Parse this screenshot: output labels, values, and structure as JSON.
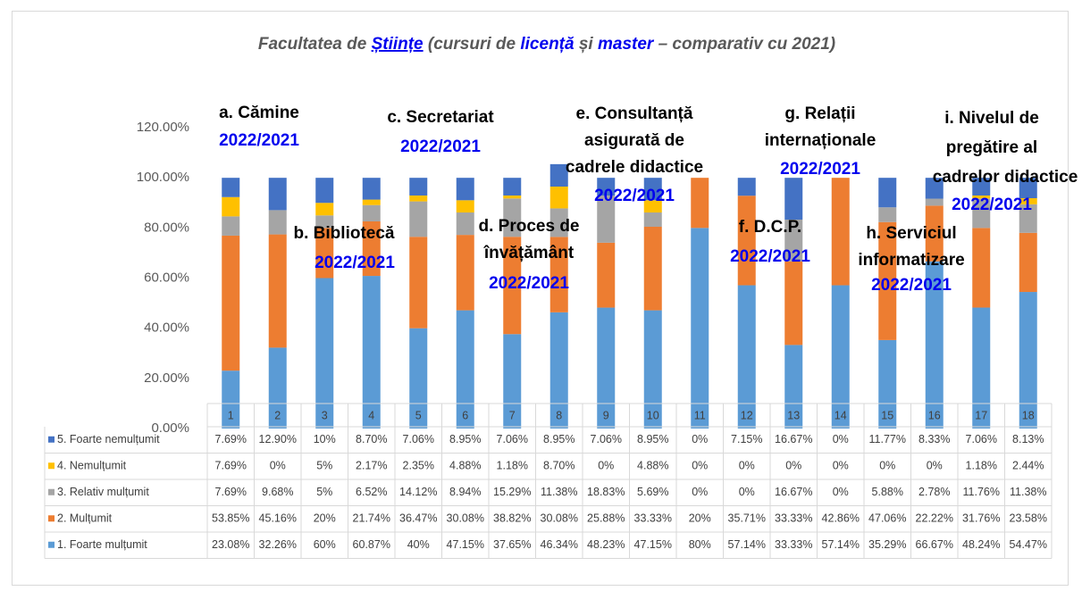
{
  "chart_data": {
    "type": "bar",
    "stacked": true,
    "title": [
      "Facultatea de ",
      "Științe",
      " (cursuri de ",
      "licență",
      " și ",
      "master",
      " – comparativ cu 2021)"
    ],
    "categories": [
      "1",
      "2",
      "3",
      "4",
      "5",
      "6",
      "7",
      "8",
      "9",
      "10",
      "11",
      "12",
      "13",
      "14",
      "15",
      "16",
      "17",
      "18"
    ],
    "series": [
      {
        "name": "1. Foarte mulțumit",
        "color": "#5b9bd5",
        "values": [
          23.08,
          32.26,
          60,
          60.87,
          40,
          47.15,
          37.65,
          46.34,
          48.23,
          47.15,
          80,
          57.14,
          33.33,
          57.14,
          35.29,
          66.67,
          48.24,
          54.47
        ],
        "value_labels": [
          "23.08%",
          "32.26%",
          "60%",
          "60.87%",
          "40%",
          "47.15%",
          "37.65%",
          "46.34%",
          "48.23%",
          "47.15%",
          "80%",
          "57.14%",
          "33.33%",
          "57.14%",
          "35.29%",
          "66.67%",
          "48.24%",
          "54.47%"
        ]
      },
      {
        "name": "2. Mulțumit",
        "color": "#ed7d31",
        "values": [
          53.85,
          45.16,
          20,
          21.74,
          36.47,
          30.08,
          38.82,
          30.08,
          25.88,
          33.33,
          20,
          35.71,
          33.33,
          42.86,
          47.06,
          22.22,
          31.76,
          23.58
        ],
        "value_labels": [
          "53.85%",
          "45.16%",
          "20%",
          "21.74%",
          "36.47%",
          "30.08%",
          "38.82%",
          "30.08%",
          "25.88%",
          "33.33%",
          "20%",
          "35.71%",
          "33.33%",
          "42.86%",
          "47.06%",
          "22.22%",
          "31.76%",
          "23.58%"
        ]
      },
      {
        "name": "3. Relativ mulțumit",
        "color": "#a5a5a5",
        "values": [
          7.69,
          9.68,
          5,
          6.52,
          14.12,
          8.94,
          15.29,
          11.38,
          18.83,
          5.69,
          0,
          0,
          16.67,
          0,
          5.88,
          2.78,
          11.76,
          11.38
        ],
        "value_labels": [
          "7.69%",
          "9.68%",
          "5%",
          "6.52%",
          "14.12%",
          "8.94%",
          "15.29%",
          "11.38%",
          "18.83%",
          "5.69%",
          "0%",
          "0%",
          "16.67%",
          "0%",
          "5.88%",
          "2.78%",
          "11.76%",
          "11.38%"
        ]
      },
      {
        "name": "4. Nemulțumit",
        "color": "#ffc000",
        "values": [
          7.69,
          0,
          5,
          2.17,
          2.35,
          4.88,
          1.18,
          8.7,
          0,
          4.88,
          0,
          0,
          0,
          0,
          0,
          0,
          1.18,
          2.44
        ],
        "value_labels": [
          "7.69%",
          "0%",
          "5%",
          "2.17%",
          "2.35%",
          "4.88%",
          "1.18%",
          "8.70%",
          "0%",
          "4.88%",
          "0%",
          "0%",
          "0%",
          "0%",
          "0%",
          "0%",
          "1.18%",
          "2.44%"
        ]
      },
      {
        "name": "5. Foarte nemulțumit",
        "color": "#4472c4",
        "values": [
          7.69,
          12.9,
          10,
          8.7,
          7.06,
          8.95,
          7.06,
          8.95,
          7.06,
          8.95,
          0,
          7.15,
          16.67,
          0,
          11.77,
          8.33,
          7.06,
          8.13
        ],
        "value_labels": [
          "7.69%",
          "12.90%",
          "10%",
          "8.70%",
          "7.06%",
          "8.95%",
          "7.06%",
          "8.95%",
          "7.06%",
          "8.95%",
          "0%",
          "7.15%",
          "16.67%",
          "0%",
          "11.77%",
          "8.33%",
          "7.06%",
          "8.13%"
        ]
      }
    ],
    "ylim": [
      0,
      120
    ],
    "yticks": [
      {
        "value": 0,
        "label": "0.00%"
      },
      {
        "value": 20,
        "label": "20.00%"
      },
      {
        "value": 40,
        "label": "40.00%"
      },
      {
        "value": 60,
        "label": "60.00%"
      },
      {
        "value": 80,
        "label": "80.00%"
      },
      {
        "value": 100,
        "label": "100.00%"
      },
      {
        "value": 120,
        "label": "120.00%"
      }
    ],
    "annotations": [
      {
        "lines": [
          "a. Cămine"
        ],
        "period": "2022/2021"
      },
      {
        "lines": [
          "b. Bibliotecă"
        ],
        "period": "2022/2021"
      },
      {
        "lines": [
          "c. Secretariat"
        ],
        "period": "2022/2021"
      },
      {
        "lines": [
          "d. Proces de",
          "învățământ"
        ],
        "period": "2022/2021"
      },
      {
        "lines": [
          "e. Consultanță",
          "asigurată de",
          "cadrele didactice"
        ],
        "period": "2022/2021"
      },
      {
        "lines": [
          "f. D.C.P."
        ],
        "period": "2022/2021"
      },
      {
        "lines": [
          "g. Relații",
          "internaționale"
        ],
        "period": "2022/2021"
      },
      {
        "lines": [
          "h. Serviciul",
          "informatizare"
        ],
        "period": "2022/2021"
      },
      {
        "lines": [
          "i. Nivelul de",
          "pregătire al",
          "cadrelor didactice"
        ],
        "period": "2022/2021"
      }
    ]
  }
}
